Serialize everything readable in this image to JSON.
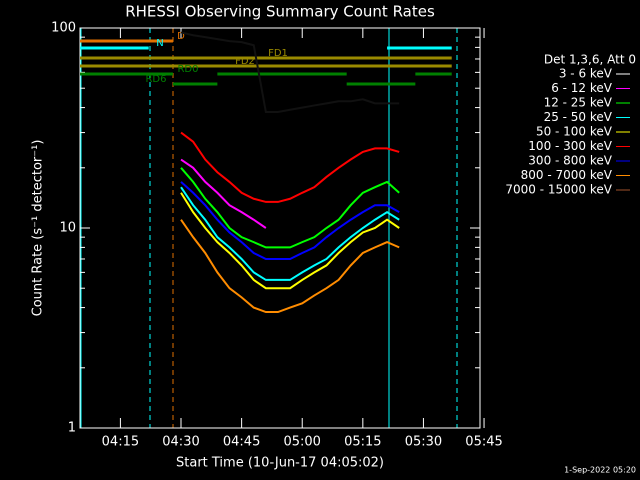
{
  "chart_data": {
    "type": "line",
    "title": "RHESSI Observing Summary Count Rates",
    "xlabel": "Start Time (10-Jun-17 04:05:02)",
    "ylabel": "Count Rate (s⁻¹ detector⁻¹)",
    "legend_title": "Det 1,3,6, Att 0",
    "footer": "1-Sep-2022 05:20",
    "log_y": true,
    "ylim": [
      1,
      100
    ],
    "yticks": [
      1,
      10,
      100
    ],
    "xlim": [
      "04:05",
      "05:44"
    ],
    "xticks": [
      "04:15",
      "04:30",
      "04:45",
      "05:00",
      "05:15",
      "05:30",
      "05:45"
    ],
    "x": [
      "04:30",
      "04:33",
      "04:36",
      "04:39",
      "04:42",
      "04:45",
      "04:48",
      "04:51",
      "04:54",
      "04:57",
      "05:00",
      "05:03",
      "05:06",
      "05:09",
      "05:12",
      "05:15",
      "05:18",
      "05:21",
      "05:24"
    ],
    "series": [
      {
        "name": "3 - 6 keV",
        "color": "#000000",
        "values": [
          95,
          92,
          90,
          88,
          86,
          85,
          82,
          38,
          38,
          39,
          40,
          41,
          42,
          43,
          43,
          44,
          42,
          42,
          42
        ]
      },
      {
        "name": "6 - 12 keV",
        "color": "#ff00ff",
        "values": [
          22,
          20,
          17,
          15,
          13,
          12,
          11,
          10,
          null,
          null,
          null,
          null,
          null,
          null,
          null,
          null,
          null,
          null,
          null
        ]
      },
      {
        "name": "12 - 25 keV",
        "color": "#00ff00",
        "values": [
          20,
          17,
          14,
          12,
          10,
          9,
          8.5,
          8,
          8,
          8,
          8.5,
          9,
          10,
          11,
          13,
          15,
          16,
          17,
          15
        ]
      },
      {
        "name": "25 - 50 keV",
        "color": "#00ffff",
        "values": [
          16,
          13,
          11,
          9,
          8,
          7,
          6,
          5.5,
          5.5,
          5.5,
          6,
          6.5,
          7,
          8,
          9,
          10,
          11,
          12,
          11
        ]
      },
      {
        "name": "50 - 100 keV",
        "color": "#ffff00",
        "values": [
          15,
          12,
          10,
          8.5,
          7.5,
          6.5,
          5.5,
          5,
          5,
          5,
          5.5,
          6,
          6.5,
          7.5,
          8.5,
          9.5,
          10,
          11,
          10
        ]
      },
      {
        "name": "100 - 300 keV",
        "color": "#ff0000",
        "values": [
          30,
          27,
          22,
          19,
          17,
          15,
          14,
          13.5,
          13.5,
          14,
          15,
          16,
          18,
          20,
          22,
          24,
          25,
          25,
          24
        ]
      },
      {
        "name": "300 - 800 keV",
        "color": "#0000ff",
        "values": [
          17,
          15,
          13,
          11,
          9.5,
          8.5,
          7.5,
          7,
          7,
          7,
          7.5,
          8,
          9,
          10,
          11,
          12,
          13,
          13,
          12
        ]
      },
      {
        "name": "800 - 7000 keV",
        "color": "#ff8c00",
        "values": [
          11,
          9,
          7.5,
          6,
          5,
          4.5,
          4,
          3.8,
          3.8,
          4,
          4.2,
          4.6,
          5,
          5.5,
          6.5,
          7.5,
          8,
          8.5,
          8
        ]
      },
      {
        "name": "7000 - 15000 keV",
        "color": "#a0522d",
        "values": [
          null,
          null,
          null,
          null,
          null,
          null,
          null,
          null,
          null,
          null,
          null,
          null,
          null,
          null,
          null,
          null,
          null,
          null,
          null
        ]
      }
    ],
    "flags": [
      {
        "label": "D",
        "color": "#e07000",
        "segments": [
          [
            "04:05",
            "04:28"
          ]
        ]
      },
      {
        "label": "N",
        "color": "#00ffff",
        "segments": [
          [
            "04:05",
            "04:22"
          ],
          [
            "05:21",
            "05:37"
          ]
        ]
      },
      {
        "label": "FD1",
        "color": "#9a8a00",
        "segments": [
          [
            "04:05",
            "05:37"
          ]
        ]
      },
      {
        "label": "FD2",
        "color": "#9a8a00",
        "segments": [
          [
            "04:05",
            "05:37"
          ]
        ]
      },
      {
        "label": "RD0",
        "color": "#008000",
        "segments": [
          [
            "04:05",
            "04:28"
          ],
          [
            "04:39",
            "05:11"
          ],
          [
            "05:28",
            "05:37"
          ]
        ]
      },
      {
        "label": "RD6",
        "color": "#008000",
        "segments": [
          [
            "04:28",
            "04:39"
          ],
          [
            "05:11",
            "05:28"
          ]
        ]
      }
    ]
  }
}
